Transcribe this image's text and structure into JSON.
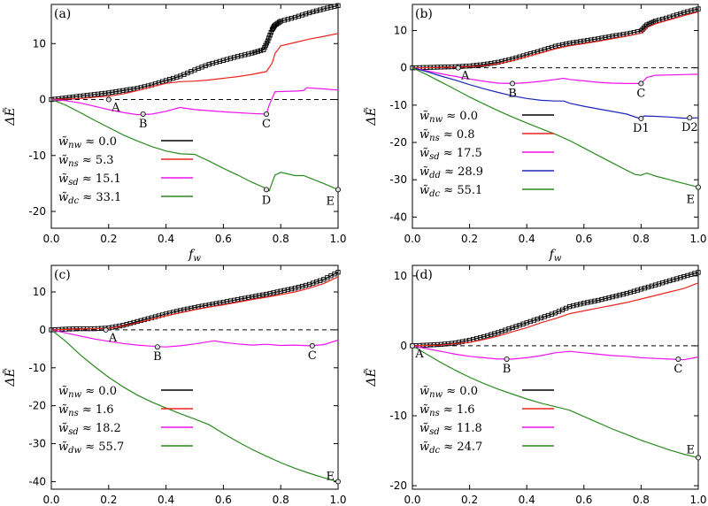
{
  "chart_data": [
    {
      "type": "line",
      "panel_label": "(a)",
      "xlabel": "f_w",
      "ylabel": "ΔẼ",
      "xlim": [
        0,
        1
      ],
      "ylim": [
        -23,
        17
      ],
      "xticks": [
        "0.0",
        "0.2",
        "0.4",
        "0.6",
        "0.8",
        "1.0"
      ],
      "yticks": [
        10,
        0,
        -10,
        -20
      ],
      "legend": [
        "w̃_nw ≈ 0.0",
        "w̃_ns ≈ 5.3",
        "w̃_sd ≈ 15.1",
        "w̃_dc ≈ 33.1"
      ],
      "series": [
        {
          "name": "w̃_nw ≈ 0.0",
          "color": "#000000",
          "markers": true,
          "x": [
            0,
            0.05,
            0.1,
            0.15,
            0.2,
            0.25,
            0.3,
            0.35,
            0.4,
            0.45,
            0.5,
            0.55,
            0.6,
            0.65,
            0.7,
            0.74,
            0.755,
            0.77,
            0.78,
            0.8,
            0.85,
            0.9,
            0.95,
            1.0
          ],
          "y": [
            0,
            0.3,
            0.6,
            0.9,
            1.2,
            1.6,
            2.0,
            2.6,
            3.4,
            4.2,
            5.3,
            6.3,
            7.0,
            7.7,
            8.3,
            8.9,
            10.5,
            12.5,
            13.3,
            14.0,
            14.7,
            15.5,
            16.2,
            16.8
          ]
        },
        {
          "name": "w̃_ns ≈ 5.3",
          "color": "#e8251f",
          "markers": false,
          "x": [
            0,
            0.1,
            0.2,
            0.25,
            0.3,
            0.35,
            0.4,
            0.45,
            0.5,
            0.55,
            0.6,
            0.65,
            0.7,
            0.75,
            0.77,
            0.78,
            0.8,
            0.85,
            0.9,
            0.95,
            1.0
          ],
          "y": [
            0,
            0.2,
            0.6,
            1.0,
            1.6,
            2.3,
            2.9,
            3.2,
            3.3,
            3.5,
            3.8,
            4.1,
            4.5,
            5.0,
            6.5,
            8.2,
            9.6,
            10.2,
            10.8,
            11.3,
            11.8
          ]
        },
        {
          "name": "w̃_sd ≈ 15.1",
          "color": "#ee11ee",
          "markers": false,
          "x": [
            0,
            0.05,
            0.1,
            0.15,
            0.2,
            0.25,
            0.3,
            0.35,
            0.4,
            0.45,
            0.46,
            0.5,
            0.6,
            0.7,
            0.75,
            0.76,
            0.78,
            0.85,
            0.88,
            0.89,
            0.95,
            1.0
          ],
          "y": [
            0,
            -0.2,
            -0.6,
            -1.2,
            -1.8,
            -2.3,
            -2.7,
            -2.6,
            -2.1,
            -1.4,
            -1.5,
            -1.8,
            -2.2,
            -2.5,
            -2.6,
            -1.0,
            1.4,
            1.5,
            1.6,
            2.1,
            1.9,
            1.7
          ]
        },
        {
          "name": "w̃_dc ≈ 33.1",
          "color": "#2a8a1f",
          "markers": false,
          "x": [
            0,
            0.05,
            0.1,
            0.15,
            0.2,
            0.25,
            0.3,
            0.35,
            0.4,
            0.45,
            0.5,
            0.55,
            0.6,
            0.65,
            0.7,
            0.75,
            0.76,
            0.78,
            0.8,
            0.85,
            0.88,
            0.9,
            0.95,
            1.0
          ],
          "y": [
            0,
            -1.0,
            -2.3,
            -3.7,
            -5.0,
            -6.3,
            -7.4,
            -8.4,
            -9.2,
            -9.7,
            -9.8,
            -11.0,
            -12.3,
            -13.5,
            -14.8,
            -15.9,
            -16.3,
            -13.5,
            -13.0,
            -13.6,
            -13.6,
            -14.0,
            -15.0,
            -16.1
          ]
        }
      ],
      "points": [
        {
          "label": "A",
          "x": 0.2,
          "y": 0
        },
        {
          "label": "B",
          "x": 0.32,
          "y": -2.6
        },
        {
          "label": "C",
          "x": 0.75,
          "y": -2.6
        },
        {
          "label": "D",
          "x": 0.75,
          "y": -16.1
        },
        {
          "label": "E",
          "x": 1.0,
          "y": -16.1
        }
      ]
    },
    {
      "type": "line",
      "panel_label": "(b)",
      "xlabel": "f_w",
      "ylabel": "ΔẼ",
      "xlim": [
        0,
        1
      ],
      "ylim": [
        -43,
        17
      ],
      "xticks": [
        "0.0",
        "0.2",
        "0.4",
        "0.6",
        "0.8",
        "1.0"
      ],
      "yticks": [
        10,
        0,
        -10,
        -20,
        -30,
        -40
      ],
      "legend": [
        "w̃_nw ≈ 0.0",
        "w̃_ns ≈ 0.8",
        "w̃_sd ≈ 17.5",
        "w̃_dd ≈ 28.9",
        "w̃_dc ≈ 55.1"
      ],
      "series": [
        {
          "name": "w̃_nw ≈ 0.0",
          "color": "#000000",
          "markers": true,
          "x": [
            0,
            0.05,
            0.1,
            0.15,
            0.2,
            0.25,
            0.3,
            0.35,
            0.4,
            0.45,
            0.5,
            0.55,
            0.6,
            0.65,
            0.7,
            0.75,
            0.8,
            0.82,
            0.85,
            0.9,
            0.95,
            1.0
          ],
          "y": [
            0,
            0.1,
            0.2,
            0.3,
            0.5,
            0.9,
            1.5,
            2.4,
            3.5,
            4.6,
            5.8,
            6.6,
            7.2,
            7.8,
            8.5,
            9.1,
            9.9,
            11.5,
            12.5,
            13.6,
            14.8,
            15.8
          ]
        },
        {
          "name": "w̃_ns ≈ 0.8",
          "color": "#e8251f",
          "markers": false,
          "x": [
            0,
            0.1,
            0.2,
            0.25,
            0.3,
            0.35,
            0.4,
            0.45,
            0.5,
            0.55,
            0.6,
            0.65,
            0.7,
            0.75,
            0.8,
            0.82,
            0.85,
            0.9,
            0.95,
            1.0
          ],
          "y": [
            0,
            0.1,
            0.3,
            0.6,
            1.1,
            1.9,
            3.0,
            4.0,
            5.1,
            5.9,
            6.5,
            7.1,
            7.8,
            8.5,
            9.3,
            10.8,
            11.8,
            12.9,
            14.0,
            15.0
          ]
        },
        {
          "name": "w̃_sd ≈ 17.5",
          "color": "#ee11ee",
          "markers": false,
          "x": [
            0,
            0.05,
            0.1,
            0.15,
            0.2,
            0.25,
            0.3,
            0.35,
            0.4,
            0.45,
            0.5,
            0.53,
            0.55,
            0.6,
            0.65,
            0.7,
            0.75,
            0.8,
            0.82,
            0.85,
            0.9,
            0.95,
            1.0
          ],
          "y": [
            0,
            -0.8,
            -1.6,
            -2.3,
            -3.0,
            -3.6,
            -4.1,
            -4.2,
            -4.0,
            -3.6,
            -3.1,
            -2.8,
            -3.1,
            -3.5,
            -3.9,
            -4.1,
            -4.2,
            -4.2,
            -2.6,
            -2.0,
            -1.9,
            -1.8,
            -1.7
          ]
        },
        {
          "name": "w̃_dd ≈ 28.9",
          "color": "#1a25b8",
          "markers": false,
          "x": [
            0,
            0.05,
            0.1,
            0.15,
            0.2,
            0.25,
            0.3,
            0.35,
            0.4,
            0.45,
            0.5,
            0.53,
            0.55,
            0.6,
            0.65,
            0.7,
            0.75,
            0.8,
            0.81,
            0.85,
            0.9,
            0.95,
            1.0
          ],
          "y": [
            0,
            -1.0,
            -2.2,
            -3.3,
            -4.5,
            -5.6,
            -6.6,
            -7.5,
            -8.2,
            -8.7,
            -8.9,
            -8.9,
            -9.5,
            -10.3,
            -11.0,
            -11.7,
            -12.4,
            -13.7,
            -12.9,
            -13.0,
            -13.2,
            -13.5,
            -13.4
          ]
        },
        {
          "name": "w̃_dc ≈ 55.1",
          "color": "#2a8a1f",
          "markers": false,
          "x": [
            0,
            0.05,
            0.1,
            0.15,
            0.2,
            0.25,
            0.3,
            0.35,
            0.4,
            0.45,
            0.5,
            0.55,
            0.6,
            0.65,
            0.7,
            0.75,
            0.78,
            0.8,
            0.82,
            0.85,
            0.9,
            0.95,
            1.0
          ],
          "y": [
            0,
            -1.8,
            -3.8,
            -5.8,
            -7.8,
            -9.7,
            -11.5,
            -13.2,
            -14.8,
            -16.3,
            -17.8,
            -19.5,
            -21.5,
            -23.5,
            -25.5,
            -27.5,
            -28.6,
            -28.8,
            -28.2,
            -29.0,
            -30.0,
            -31.0,
            -32.0
          ]
        }
      ],
      "points": [
        {
          "label": "A",
          "x": 0.16,
          "y": 0
        },
        {
          "label": "B",
          "x": 0.35,
          "y": -4.2
        },
        {
          "label": "C",
          "x": 0.8,
          "y": -4.2
        },
        {
          "label": "D1",
          "x": 0.8,
          "y": -13.6
        },
        {
          "label": "D2",
          "x": 0.97,
          "y": -13.4
        },
        {
          "label": "E",
          "x": 1.0,
          "y": -32.0
        }
      ]
    },
    {
      "type": "line",
      "panel_label": "(c)",
      "xlabel": "f_w",
      "ylabel": "ΔẼ",
      "xlim": [
        0,
        1
      ],
      "ylim": [
        -42,
        17
      ],
      "xticks": [
        "0.0",
        "0.2",
        "0.4",
        "0.6",
        "0.8",
        "1.0"
      ],
      "yticks": [
        10,
        0,
        -10,
        -20,
        -30,
        -40
      ],
      "legend": [
        "w̃_nw ≈ 0.0",
        "w̃_ns ≈ 1.6",
        "w̃_sd ≈ 18.2",
        "w̃_dw ≈ 55.7"
      ],
      "series": [
        {
          "name": "w̃_nw ≈ 0.0",
          "color": "#000000",
          "markers": true,
          "x": [
            0,
            0.05,
            0.1,
            0.15,
            0.2,
            0.25,
            0.3,
            0.35,
            0.4,
            0.45,
            0.5,
            0.55,
            0.6,
            0.65,
            0.7,
            0.75,
            0.8,
            0.85,
            0.9,
            0.95,
            1.0
          ],
          "y": [
            0,
            0.2,
            0.3,
            0.3,
            0.5,
            1.2,
            2.2,
            3.2,
            4.2,
            5.1,
            5.9,
            6.6,
            7.3,
            8.0,
            8.7,
            9.4,
            10.2,
            11.0,
            12.0,
            13.3,
            15.2
          ]
        },
        {
          "name": "w̃_ns ≈ 1.6",
          "color": "#e8251f",
          "markers": false,
          "x": [
            0,
            0.1,
            0.2,
            0.25,
            0.3,
            0.35,
            0.4,
            0.45,
            0.5,
            0.55,
            0.6,
            0.65,
            0.7,
            0.75,
            0.8,
            0.85,
            0.9,
            0.95,
            1.0
          ],
          "y": [
            0,
            0.2,
            0.4,
            1.0,
            1.9,
            2.8,
            3.7,
            4.5,
            5.3,
            6.0,
            6.6,
            7.3,
            8.0,
            8.6,
            9.3,
            10.0,
            11.0,
            12.2,
            14.0
          ]
        },
        {
          "name": "w̃_sd ≈ 18.2",
          "color": "#ee11ee",
          "markers": false,
          "x": [
            0,
            0.05,
            0.1,
            0.15,
            0.2,
            0.25,
            0.3,
            0.35,
            0.4,
            0.45,
            0.5,
            0.55,
            0.57,
            0.6,
            0.65,
            0.7,
            0.75,
            0.8,
            0.85,
            0.9,
            0.95,
            1.0
          ],
          "y": [
            0,
            -0.8,
            -1.6,
            -2.4,
            -3.0,
            -3.6,
            -4.0,
            -4.3,
            -4.5,
            -4.2,
            -3.7,
            -3.1,
            -2.9,
            -3.3,
            -3.7,
            -4.0,
            -3.8,
            -4.1,
            -4.0,
            -4.2,
            -3.9,
            -2.7
          ]
        },
        {
          "name": "w̃_dw ≈ 55.7",
          "color": "#2a8a1f",
          "markers": false,
          "x": [
            0,
            0.05,
            0.1,
            0.15,
            0.2,
            0.25,
            0.3,
            0.35,
            0.4,
            0.45,
            0.5,
            0.55,
            0.6,
            0.65,
            0.7,
            0.75,
            0.8,
            0.85,
            0.9,
            0.95,
            1.0
          ],
          "y": [
            0,
            -3.0,
            -6.5,
            -9.6,
            -12.5,
            -15.0,
            -17.2,
            -19.0,
            -20.6,
            -22.1,
            -23.5,
            -25.0,
            -27.3,
            -29.5,
            -31.5,
            -33.3,
            -35.0,
            -36.5,
            -37.8,
            -39.0,
            -40.0
          ]
        }
      ],
      "points": [
        {
          "label": "A",
          "x": 0.19,
          "y": 0
        },
        {
          "label": "B",
          "x": 0.37,
          "y": -4.5
        },
        {
          "label": "C",
          "x": 0.91,
          "y": -4.2
        },
        {
          "label": "E",
          "x": 1.0,
          "y": -40.0
        }
      ]
    },
    {
      "type": "line",
      "panel_label": "(d)",
      "xlabel": "f_w",
      "ylabel": "ΔẼ",
      "xlim": [
        0,
        1
      ],
      "ylim": [
        -20.5,
        11.5
      ],
      "xticks": [
        "0.0",
        "0.2",
        "0.4",
        "0.6",
        "0.8",
        "1.0"
      ],
      "yticks": [
        10,
        0,
        -10,
        -20
      ],
      "legend": [
        "w̃_nw ≈ 0.0",
        "w̃_ns ≈ 1.6",
        "w̃_sd ≈ 11.8",
        "w̃_dc ≈ 24.7"
      ],
      "series": [
        {
          "name": "w̃_nw ≈ 0.0",
          "color": "#000000",
          "markers": true,
          "x": [
            0,
            0.05,
            0.1,
            0.15,
            0.2,
            0.25,
            0.3,
            0.35,
            0.4,
            0.45,
            0.5,
            0.55,
            0.6,
            0.65,
            0.7,
            0.75,
            0.8,
            0.85,
            0.9,
            0.95,
            1.0
          ],
          "y": [
            0,
            0.1,
            0.2,
            0.4,
            0.8,
            1.3,
            1.9,
            2.6,
            3.3,
            4.0,
            4.7,
            5.6,
            6.1,
            6.5,
            7.0,
            7.5,
            8.1,
            8.7,
            9.3,
            9.9,
            10.5
          ]
        },
        {
          "name": "w̃_ns ≈ 1.6",
          "color": "#e8251f",
          "markers": false,
          "x": [
            0,
            0.1,
            0.2,
            0.25,
            0.3,
            0.35,
            0.4,
            0.45,
            0.5,
            0.55,
            0.6,
            0.65,
            0.7,
            0.75,
            0.8,
            0.85,
            0.9,
            0.95,
            1.0
          ],
          "y": [
            0,
            0.1,
            0.5,
            0.9,
            1.4,
            2.0,
            2.6,
            3.3,
            3.9,
            4.6,
            5.0,
            5.4,
            5.8,
            6.2,
            6.7,
            7.2,
            7.7,
            8.2,
            9.0
          ]
        },
        {
          "name": "w̃_sd ≈ 11.8",
          "color": "#ee11ee",
          "markers": false,
          "x": [
            0,
            0.05,
            0.1,
            0.15,
            0.2,
            0.25,
            0.3,
            0.35,
            0.4,
            0.45,
            0.5,
            0.55,
            0.6,
            0.65,
            0.7,
            0.75,
            0.8,
            0.85,
            0.9,
            0.95,
            1.0
          ],
          "y": [
            0,
            -0.4,
            -0.8,
            -1.2,
            -1.5,
            -1.7,
            -1.9,
            -1.9,
            -1.7,
            -1.4,
            -1.0,
            -0.8,
            -1.0,
            -1.2,
            -1.4,
            -1.5,
            -1.7,
            -1.8,
            -1.9,
            -2.0,
            -1.6
          ]
        },
        {
          "name": "w̃_dc ≈ 24.7",
          "color": "#2a8a1f",
          "markers": false,
          "x": [
            0,
            0.05,
            0.1,
            0.15,
            0.2,
            0.25,
            0.3,
            0.35,
            0.4,
            0.45,
            0.5,
            0.55,
            0.6,
            0.65,
            0.7,
            0.75,
            0.8,
            0.85,
            0.9,
            0.95,
            1.0
          ],
          "y": [
            0,
            -1.2,
            -2.4,
            -3.5,
            -4.5,
            -5.4,
            -6.2,
            -6.9,
            -7.6,
            -8.2,
            -8.7,
            -9.2,
            -10.1,
            -11.0,
            -11.9,
            -12.7,
            -13.5,
            -14.2,
            -14.9,
            -15.5,
            -16.0
          ]
        }
      ],
      "points": [
        {
          "label": "A",
          "x": 0.0,
          "y": 0
        },
        {
          "label": "B",
          "x": 0.33,
          "y": -1.9
        },
        {
          "label": "C",
          "x": 0.93,
          "y": -1.9
        },
        {
          "label": "E",
          "x": 1.0,
          "y": -16.0
        }
      ]
    }
  ]
}
